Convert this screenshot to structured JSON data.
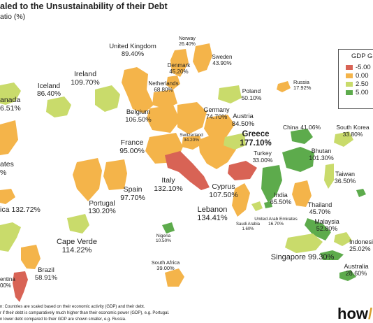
{
  "title": "aled to the Unsustainability of their Debt",
  "subtitle": "atio (%)",
  "legend": {
    "title": "GDP G",
    "items": [
      {
        "label": "-5.00",
        "color": "#d86355"
      },
      {
        "label": "0.00",
        "color": "#f4b44a"
      },
      {
        "label": "2.50",
        "color": "#c9db6b"
      },
      {
        "label": "5.00",
        "color": "#5dab4c"
      }
    ]
  },
  "countries": [
    {
      "name": "anada",
      "value": "6.51%"
    },
    {
      "name": "ates",
      "value": "%"
    },
    {
      "name": "ica",
      "value": "132.72%"
    },
    {
      "name": "entina",
      "value": "00%"
    },
    {
      "name": "United Kingdom",
      "value": "89.40%"
    },
    {
      "name": "Ireland",
      "value": "109.70%"
    },
    {
      "name": "Iceland",
      "value": "86.40%"
    },
    {
      "name": "Norway",
      "value": "26.40%"
    },
    {
      "name": "Sweden",
      "value": "43.90%"
    },
    {
      "name": "Denmark",
      "value": "45.20%"
    },
    {
      "name": "Netherlands",
      "value": "68.80%"
    },
    {
      "name": "Poland",
      "value": "50.10%"
    },
    {
      "name": "Russia",
      "value": "17.92%"
    },
    {
      "name": "Belgium",
      "value": "106.50%"
    },
    {
      "name": "Germany",
      "value": "74.70%"
    },
    {
      "name": "Austria",
      "value": "84.50%"
    },
    {
      "name": "France",
      "value": "95.00%"
    },
    {
      "name": "Switzerland",
      "value": "34.20%"
    },
    {
      "name": "Greece",
      "value": "177.10%"
    },
    {
      "name": "Turkey",
      "value": "33.00%"
    },
    {
      "name": "Spain",
      "value": "97.70%"
    },
    {
      "name": "Italy",
      "value": "132.10%"
    },
    {
      "name": "Portugal",
      "value": "130.20%"
    },
    {
      "name": "Cyprus",
      "value": "107.50%"
    },
    {
      "name": "Lebanon",
      "value": "134.41%"
    },
    {
      "name": "Cape Verde",
      "value": "114.22%"
    },
    {
      "name": "Nigeria",
      "value": "10.50%"
    },
    {
      "name": "Saudi Arabia",
      "value": "1.60%"
    },
    {
      "name": "United Arab Emirates",
      "value": "16.70%"
    },
    {
      "name": "Brazil",
      "value": "58.91%"
    },
    {
      "name": "South Africa",
      "value": "39.00%"
    },
    {
      "name": "China",
      "value": "41.06%"
    },
    {
      "name": "South Korea",
      "value": "33.80%"
    },
    {
      "name": "Bhutan",
      "value": "101.30%"
    },
    {
      "name": "Taiwan",
      "value": "36.50%"
    },
    {
      "name": "India",
      "value": "65.50%"
    },
    {
      "name": "Thailand",
      "value": "45.70%"
    },
    {
      "name": "Malaysia",
      "value": "52.80%"
    },
    {
      "name": "Indonesia",
      "value": "25.02%"
    },
    {
      "name": "Singapore",
      "value": "99.30%"
    },
    {
      "name": "Australia",
      "value": "28.60%"
    }
  ],
  "footnote": [
    "n: Countries are scaled based on their economic activity (GDP) and their debt.",
    "r if their debt is comparatively much higher than their economic power (GDP), e.g. Portugal.",
    "n lower debt compared to their GDP are shown smaller, e.g. Russia."
  ],
  "brand": {
    "text": "how",
    "mark": "/"
  }
}
